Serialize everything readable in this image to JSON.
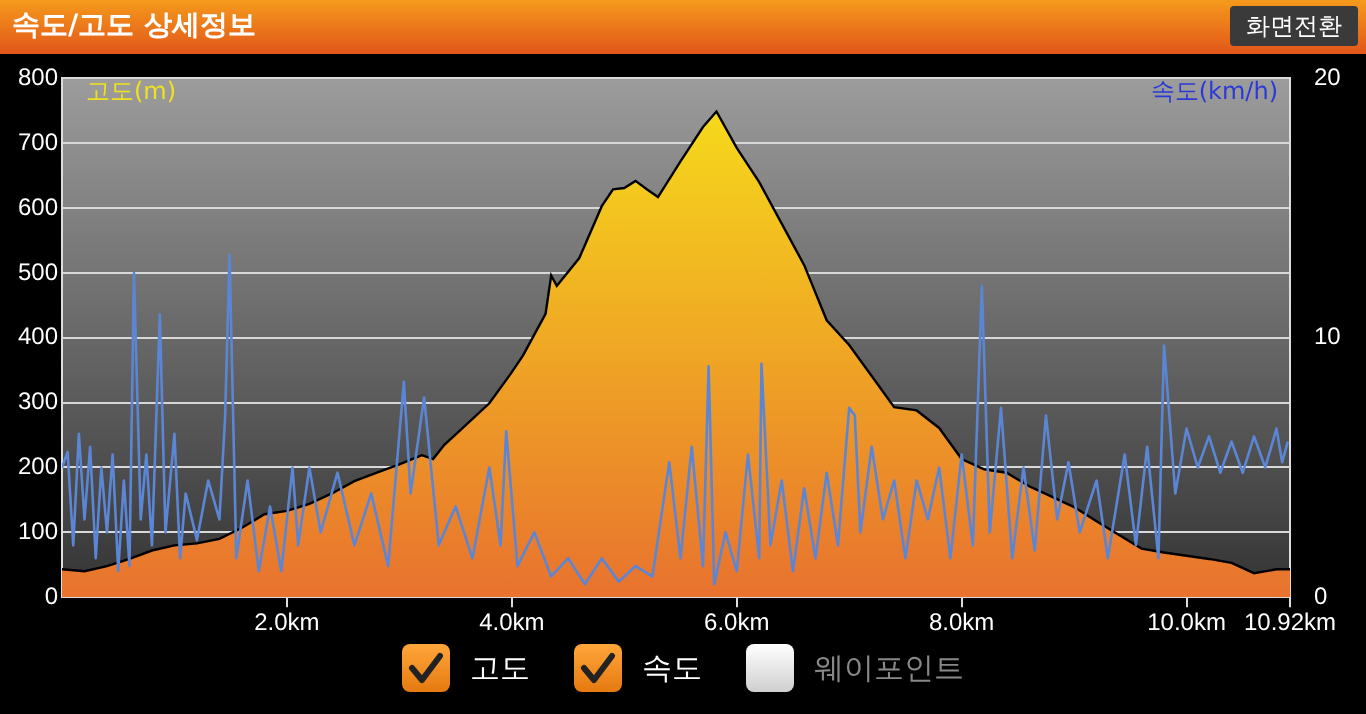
{
  "chart_data": {
    "type": "area",
    "title": "속도/고도 상세정보",
    "ylabel": "고도(m)",
    "y2label": "속도(km/h)",
    "xlim": [
      0,
      10.92
    ],
    "xticks": [
      {
        "value": 2,
        "label": "2.0km"
      },
      {
        "value": 4,
        "label": "4.0km"
      },
      {
        "value": 6,
        "label": "6.0km"
      },
      {
        "value": 8,
        "label": "8.0km"
      },
      {
        "value": 10,
        "label": "10.0km"
      },
      {
        "value": 10.92,
        "label": "10.92km"
      }
    ],
    "ylim": [
      0,
      800
    ],
    "yticks": [
      0,
      100,
      200,
      300,
      400,
      500,
      600,
      700,
      800
    ],
    "y2lim": [
      0,
      20
    ],
    "y2ticks": [
      0,
      10,
      20
    ],
    "grid": "y",
    "legend": "bottom",
    "annotations": [
      "화면전환",
      "웨이포인트"
    ],
    "series": [
      {
        "name": "고도",
        "color": "#e8722e",
        "x": [
          0,
          0.2,
          0.4,
          0.6,
          0.8,
          1.0,
          1.2,
          1.4,
          1.6,
          1.8,
          2.0,
          2.2,
          2.4,
          2.6,
          2.8,
          3.0,
          3.2,
          3.3,
          3.4,
          3.6,
          3.8,
          4.0,
          4.1,
          4.2,
          4.3,
          4.35,
          4.4,
          4.6,
          4.8,
          4.9,
          5.0,
          5.1,
          5.2,
          5.3,
          5.5,
          5.7,
          5.82,
          6.0,
          6.2,
          6.4,
          6.6,
          6.8,
          7.0,
          7.2,
          7.4,
          7.6,
          7.8,
          8.0,
          8.2,
          8.4,
          8.6,
          8.8,
          9.0,
          9.2,
          9.4,
          9.6,
          9.8,
          10.0,
          10.2,
          10.4,
          10.6,
          10.8,
          10.92
        ],
        "values": [
          43,
          40,
          48,
          59,
          72,
          80,
          83,
          90,
          107,
          128,
          133,
          144,
          160,
          179,
          192,
          205,
          219,
          213,
          235,
          267,
          299,
          347,
          373,
          405,
          437,
          496,
          480,
          523,
          603,
          629,
          631,
          642,
          629,
          617,
          672,
          725,
          749,
          693,
          640,
          576,
          512,
          427,
          389,
          341,
          293,
          288,
          261,
          213,
          197,
          192,
          171,
          155,
          139,
          117,
          96,
          75,
          69,
          64,
          59,
          53,
          37,
          43,
          43
        ]
      },
      {
        "name": "속도",
        "type": "line",
        "axis": "y2",
        "color": "#5b86d6",
        "x": [
          0.0,
          0.05,
          0.1,
          0.15,
          0.2,
          0.25,
          0.3,
          0.35,
          0.4,
          0.45,
          0.5,
          0.55,
          0.6,
          0.64,
          0.7,
          0.75,
          0.8,
          0.87,
          0.92,
          1.0,
          1.05,
          1.1,
          1.2,
          1.3,
          1.4,
          1.45,
          1.49,
          1.55,
          1.65,
          1.75,
          1.85,
          1.95,
          2.05,
          2.1,
          2.2,
          2.3,
          2.45,
          2.6,
          2.75,
          2.9,
          3.04,
          3.1,
          3.22,
          3.35,
          3.5,
          3.65,
          3.8,
          3.9,
          3.95,
          4.05,
          4.2,
          4.35,
          4.5,
          4.65,
          4.8,
          4.95,
          5.1,
          5.25,
          5.4,
          5.5,
          5.6,
          5.7,
          5.75,
          5.8,
          5.9,
          6.0,
          6.1,
          6.2,
          6.22,
          6.3,
          6.4,
          6.5,
          6.6,
          6.7,
          6.8,
          6.9,
          7.0,
          7.05,
          7.1,
          7.2,
          7.3,
          7.4,
          7.5,
          7.6,
          7.7,
          7.8,
          7.9,
          8.0,
          8.1,
          8.18,
          8.25,
          8.35,
          8.45,
          8.55,
          8.65,
          8.75,
          8.85,
          8.95,
          9.05,
          9.2,
          9.3,
          9.45,
          9.55,
          9.65,
          9.75,
          9.8,
          9.9,
          10.0,
          10.1,
          10.2,
          10.3,
          10.4,
          10.5,
          10.6,
          10.7,
          10.8,
          10.85,
          10.9
        ],
        "values": [
          5,
          5.6,
          2,
          6.3,
          3,
          5.8,
          1.5,
          5,
          2.5,
          5.5,
          1,
          4.5,
          1.2,
          12.5,
          3,
          5.5,
          2,
          10.9,
          2.5,
          6.3,
          1.5,
          4,
          2.2,
          4.5,
          3,
          6.9,
          13.2,
          1.5,
          4.5,
          1,
          3.5,
          1,
          5,
          2,
          5,
          2.5,
          4.8,
          2,
          4,
          1.2,
          8.3,
          4,
          7.7,
          2,
          3.5,
          1.5,
          5,
          2,
          6.4,
          1.2,
          2.5,
          0.8,
          1.5,
          0.5,
          1.5,
          0.6,
          1.2,
          0.8,
          5.2,
          1.5,
          5.8,
          1.2,
          8.9,
          0.5,
          2.5,
          1,
          5.5,
          1.5,
          9,
          2,
          4.5,
          1,
          4.2,
          1.5,
          4.8,
          2,
          7.3,
          7,
          2.5,
          5.8,
          3,
          4.5,
          1.5,
          4.5,
          3,
          5,
          1.5,
          5.5,
          2,
          12,
          2.5,
          7.3,
          1.5,
          5,
          1.8,
          7,
          3,
          5.2,
          2.5,
          4.5,
          1.5,
          5.5,
          2,
          5.8,
          1.5,
          9.7,
          4,
          6.5,
          5,
          6.2,
          4.8,
          6,
          4.8,
          6.2,
          5,
          6.5,
          5.2,
          6
        ]
      }
    ]
  }
}
